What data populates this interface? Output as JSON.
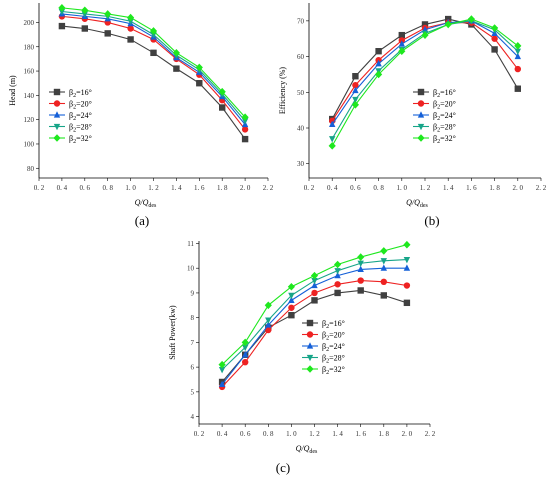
{
  "series_meta": [
    {
      "label": "β",
      "sub": "2",
      "suffix": "=16°",
      "color": "#404040",
      "marker": "square"
    },
    {
      "label": "β",
      "sub": "2",
      "suffix": "=20°",
      "color": "#ee2222",
      "marker": "circle"
    },
    {
      "label": "β",
      "sub": "2",
      "suffix": "=24°",
      "color": "#1560d8",
      "marker": "triangle-up"
    },
    {
      "label": "β",
      "sub": "2",
      "suffix": "=28°",
      "color": "#17a589",
      "marker": "triangle-down"
    },
    {
      "label": "β",
      "sub": "2",
      "suffix": "=32°",
      "color": "#1ee81e",
      "marker": "diamond"
    }
  ],
  "chart_data": [
    {
      "type": "line",
      "panel_label": "(a)",
      "ylabel": "Head (m)",
      "xlabel_main": "Q/Q",
      "xlabel_sub": "des",
      "xlim": [
        0.2,
        2.2
      ],
      "ylim": [
        72,
        216
      ],
      "xticks": [
        0.2,
        0.4,
        0.6,
        0.8,
        1.0,
        1.2,
        1.4,
        1.6,
        1.8,
        2.0,
        2.2
      ],
      "xtick_labels": [
        "0. 2",
        "0. 4",
        "0. 6",
        "0. 8",
        "1. 0",
        "1. 2",
        "1. 4",
        "1. 6",
        "1. 8",
        "2. 0",
        "2. 2"
      ],
      "yticks": [
        80,
        100,
        120,
        140,
        160,
        180,
        200
      ],
      "ytick_labels": [
        "80",
        "100",
        "120",
        "140",
        "160",
        "180",
        "200"
      ],
      "legend": "lower-left",
      "x": [
        0.4,
        0.6,
        0.8,
        1.0,
        1.2,
        1.4,
        1.6,
        1.8,
        2.0
      ],
      "series": [
        {
          "name": "β2=16°",
          "values": [
            197,
            195,
            191,
            186,
            175,
            162,
            150,
            130,
            104
          ]
        },
        {
          "name": "β2=20°",
          "values": [
            205,
            203,
            200,
            195,
            186,
            170,
            157,
            136,
            112
          ]
        },
        {
          "name": "β2=24°",
          "values": [
            207,
            205,
            203,
            199,
            188,
            171,
            159,
            139,
            116
          ]
        },
        {
          "name": "β2=28°",
          "values": [
            209,
            207,
            205,
            201,
            190,
            173,
            161,
            141,
            119
          ]
        },
        {
          "name": "β2=32°",
          "values": [
            212,
            210,
            207,
            204,
            193,
            175,
            163,
            143,
            122
          ]
        }
      ]
    },
    {
      "type": "line",
      "panel_label": "(b)",
      "ylabel": "Efficiency (%)",
      "xlabel_main": "Q/Q",
      "xlabel_sub": "des",
      "xlim": [
        0.2,
        2.2
      ],
      "ylim": [
        26,
        75
      ],
      "xticks": [
        0.2,
        0.4,
        0.6,
        0.8,
        1.0,
        1.2,
        1.4,
        1.6,
        1.8,
        2.0,
        2.2
      ],
      "xtick_labels": [
        "0. 2",
        "0. 4",
        "0. 6",
        "0. 8",
        "1. 0",
        "1. 2",
        "1. 4",
        "1. 6",
        "1. 8",
        "2. 0",
        "2. 2"
      ],
      "yticks": [
        30,
        40,
        50,
        60,
        70
      ],
      "ytick_labels": [
        "30",
        "40",
        "50",
        "60",
        "70"
      ],
      "legend": "lower-right",
      "x": [
        0.4,
        0.6,
        0.8,
        1.0,
        1.2,
        1.4,
        1.6,
        1.8,
        2.0
      ],
      "series": [
        {
          "name": "β2=16°",
          "values": [
            42.5,
            54.5,
            61.5,
            66,
            69,
            70.5,
            69,
            62,
            51
          ]
        },
        {
          "name": "β2=20°",
          "values": [
            42,
            52,
            59,
            64.5,
            68,
            69.5,
            69.5,
            65,
            56.5
          ]
        },
        {
          "name": "β2=24°",
          "values": [
            41,
            50.5,
            58,
            63.5,
            67.5,
            69.5,
            70,
            66.5,
            60
          ]
        },
        {
          "name": "β2=28°",
          "values": [
            37,
            48,
            56,
            62,
            66.5,
            69,
            70,
            67.5,
            61.5
          ]
        },
        {
          "name": "β2=32°",
          "values": [
            35,
            46.5,
            55,
            61.5,
            66,
            69,
            70.5,
            68,
            63
          ]
        }
      ]
    },
    {
      "type": "line",
      "panel_label": "(c)",
      "ylabel": "Shaft Power(kw)",
      "xlabel_main": "Q/Q",
      "xlabel_sub": "des",
      "xlim": [
        0.2,
        2.2
      ],
      "ylim": [
        3.7,
        11.1
      ],
      "xticks": [
        0.2,
        0.4,
        0.6,
        0.8,
        1.0,
        1.2,
        1.4,
        1.6,
        1.8,
        2.0,
        2.2
      ],
      "xtick_labels": [
        "0. 2",
        "0. 4",
        "0. 6",
        "0. 8",
        "1. 0",
        "1. 2",
        "1. 4",
        "1. 6",
        "1. 8",
        "2. 0",
        "2. 2"
      ],
      "yticks": [
        4,
        5,
        6,
        7,
        8,
        9,
        10,
        11
      ],
      "ytick_labels": [
        "4",
        "5",
        "6",
        "7",
        "8",
        "9",
        "10",
        "11"
      ],
      "legend": "lower-right",
      "x": [
        0.4,
        0.6,
        0.8,
        1.0,
        1.2,
        1.4,
        1.6,
        1.8,
        2.0
      ],
      "series": [
        {
          "name": "β2=16°",
          "values": [
            5.4,
            6.5,
            7.6,
            8.1,
            8.7,
            9.0,
            9.1,
            8.9,
            8.6
          ]
        },
        {
          "name": "β2=20°",
          "values": [
            5.2,
            6.2,
            7.5,
            8.4,
            9.0,
            9.35,
            9.5,
            9.45,
            9.3
          ]
        },
        {
          "name": "β2=24°",
          "values": [
            5.3,
            6.5,
            7.7,
            8.7,
            9.3,
            9.7,
            9.95,
            10.0,
            10.0
          ]
        },
        {
          "name": "β2=28°",
          "values": [
            5.9,
            6.8,
            7.9,
            8.9,
            9.5,
            9.9,
            10.2,
            10.3,
            10.35
          ]
        },
        {
          "name": "β2=32°",
          "values": [
            6.1,
            7.0,
            8.5,
            9.25,
            9.7,
            10.15,
            10.45,
            10.7,
            10.95
          ]
        }
      ]
    }
  ]
}
